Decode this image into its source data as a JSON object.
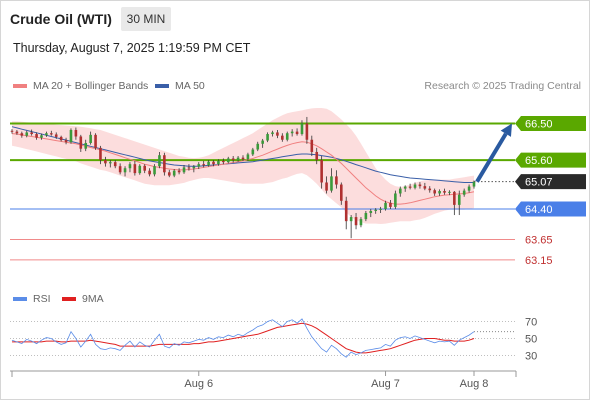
{
  "header": {
    "instrument": "Crude Oil (WTI)",
    "timeframe": "30 MIN",
    "datetime": "Thursday, August 7, 2025 1:19:59 PM CET",
    "credit": "Research © 2025 Trading Central"
  },
  "legend": {
    "ma20_label": "MA 20 + Bollinger Bands",
    "ma50_label": "MA 50",
    "rsi_label": "RSI",
    "rsi_ma_label": "9MA"
  },
  "colors": {
    "bull": "#3a9a3a",
    "bear": "#b03030",
    "ma20": "#f08080",
    "ma50": "#3a5fa8",
    "band_fill": "#fbd4d4",
    "resistance": "#5aa800",
    "pivot": "#4a7fe8",
    "support": "#f08a8a",
    "arrow": "#2a5aa0",
    "last_price_bg": "#2a2a2a",
    "rsi_line": "#5b8de8",
    "rsi_ma_line": "#e02020"
  },
  "chart_data": {
    "type": "candlestick",
    "x_ticks": [
      "Aug 6",
      "Aug 7",
      "Aug 8"
    ],
    "y_range": [
      62.9,
      67.15
    ],
    "levels": [
      {
        "value": 66.5,
        "label": "66.50",
        "kind": "resistance"
      },
      {
        "value": 65.6,
        "label": "65.60",
        "kind": "resistance"
      },
      {
        "value": 64.4,
        "label": "64.40",
        "kind": "pivot"
      },
      {
        "value": 63.65,
        "label": "63.65",
        "kind": "support"
      },
      {
        "value": 63.15,
        "label": "63.15",
        "kind": "support"
      }
    ],
    "last_price": {
      "value": 65.07,
      "label": "65.07"
    },
    "target_arrow": {
      "from": 65.07,
      "to": 66.5
    },
    "candles_ohlc": [
      [
        66.32,
        66.36,
        66.25,
        66.3
      ],
      [
        66.3,
        66.34,
        66.22,
        66.26
      ],
      [
        66.26,
        66.3,
        66.15,
        66.2
      ],
      [
        66.2,
        66.32,
        66.16,
        66.28
      ],
      [
        66.28,
        66.35,
        66.2,
        66.24
      ],
      [
        66.24,
        66.28,
        66.1,
        66.15
      ],
      [
        66.15,
        66.25,
        66.1,
        66.21
      ],
      [
        66.21,
        66.3,
        66.17,
        66.26
      ],
      [
        66.26,
        66.32,
        66.2,
        66.23
      ],
      [
        66.23,
        66.28,
        66.12,
        66.17
      ],
      [
        66.17,
        66.2,
        66.06,
        66.09
      ],
      [
        66.09,
        66.15,
        65.99,
        66.04
      ],
      [
        66.04,
        66.38,
        66.0,
        66.34
      ],
      [
        66.34,
        66.4,
        66.1,
        66.18
      ],
      [
        66.18,
        66.22,
        65.8,
        65.88
      ],
      [
        65.88,
        66.1,
        65.82,
        66.02
      ],
      [
        66.02,
        66.3,
        65.98,
        66.22
      ],
      [
        66.22,
        66.26,
        65.85,
        65.9
      ],
      [
        65.9,
        65.95,
        65.5,
        65.6
      ],
      [
        65.6,
        65.68,
        65.44,
        65.52
      ],
      [
        65.52,
        65.6,
        65.42,
        65.55
      ],
      [
        65.55,
        65.6,
        65.4,
        65.45
      ],
      [
        65.45,
        65.52,
        65.25,
        65.3
      ],
      [
        65.3,
        65.45,
        65.2,
        65.4
      ],
      [
        65.4,
        65.55,
        65.3,
        65.5
      ],
      [
        65.5,
        65.58,
        65.22,
        65.28
      ],
      [
        65.28,
        65.5,
        65.24,
        65.46
      ],
      [
        65.46,
        65.5,
        65.28,
        65.34
      ],
      [
        65.34,
        65.4,
        65.2,
        65.25
      ],
      [
        65.25,
        65.5,
        65.2,
        65.45
      ],
      [
        65.45,
        65.8,
        65.4,
        65.72
      ],
      [
        65.72,
        65.78,
        65.22,
        65.3
      ],
      [
        65.3,
        65.36,
        65.18,
        65.22
      ],
      [
        65.22,
        65.38,
        65.18,
        65.34
      ],
      [
        65.34,
        65.4,
        65.25,
        65.3
      ],
      [
        65.3,
        65.48,
        65.26,
        65.42
      ],
      [
        65.42,
        65.5,
        65.34,
        65.4
      ],
      [
        65.4,
        65.48,
        65.3,
        65.44
      ],
      [
        65.44,
        65.55,
        65.38,
        65.5
      ],
      [
        65.5,
        65.58,
        65.42,
        65.47
      ],
      [
        65.47,
        65.6,
        65.44,
        65.56
      ],
      [
        65.56,
        65.6,
        65.45,
        65.5
      ],
      [
        65.5,
        65.62,
        65.46,
        65.58
      ],
      [
        65.58,
        65.64,
        65.5,
        65.55
      ],
      [
        65.55,
        65.68,
        65.52,
        65.64
      ],
      [
        65.64,
        65.7,
        65.54,
        65.6
      ],
      [
        65.6,
        65.7,
        65.56,
        65.66
      ],
      [
        65.66,
        65.72,
        65.58,
        65.62
      ],
      [
        65.62,
        65.78,
        65.58,
        65.74
      ],
      [
        65.74,
        65.9,
        65.7,
        65.86
      ],
      [
        65.86,
        66.05,
        65.82,
        66.0
      ],
      [
        66.0,
        66.12,
        65.9,
        66.08
      ],
      [
        66.08,
        66.28,
        66.04,
        66.24
      ],
      [
        66.24,
        66.32,
        66.18,
        66.28
      ],
      [
        66.28,
        66.34,
        66.14,
        66.2
      ],
      [
        66.2,
        66.26,
        66.05,
        66.1
      ],
      [
        66.1,
        66.3,
        66.06,
        66.26
      ],
      [
        66.26,
        66.36,
        66.18,
        66.3
      ],
      [
        66.3,
        66.38,
        66.2,
        66.24
      ],
      [
        66.24,
        66.58,
        66.2,
        66.5
      ],
      [
        66.5,
        66.66,
        66.0,
        66.1
      ],
      [
        66.1,
        66.2,
        65.7,
        65.8
      ],
      [
        65.8,
        65.9,
        65.5,
        65.6
      ],
      [
        65.6,
        65.7,
        64.9,
        65.05
      ],
      [
        65.05,
        65.2,
        64.78,
        64.85
      ],
      [
        64.85,
        65.4,
        64.8,
        65.2
      ],
      [
        65.2,
        65.35,
        64.9,
        65.0
      ],
      [
        65.0,
        65.05,
        64.5,
        64.6
      ],
      [
        64.6,
        64.7,
        63.9,
        64.1
      ],
      [
        64.1,
        64.25,
        63.68,
        64.2
      ],
      [
        64.2,
        64.3,
        63.9,
        64.0
      ],
      [
        64.0,
        64.2,
        63.95,
        64.15
      ],
      [
        64.15,
        64.35,
        64.1,
        64.3
      ],
      [
        64.3,
        64.4,
        64.2,
        64.35
      ],
      [
        64.35,
        64.42,
        64.28,
        64.38
      ],
      [
        64.38,
        64.45,
        64.3,
        64.4
      ],
      [
        64.4,
        64.6,
        64.36,
        64.55
      ],
      [
        64.55,
        64.62,
        64.4,
        64.45
      ],
      [
        64.45,
        64.85,
        64.4,
        64.78
      ],
      [
        64.78,
        64.95,
        64.7,
        64.9
      ],
      [
        64.9,
        64.98,
        64.82,
        64.95
      ],
      [
        64.95,
        65.02,
        64.88,
        64.92
      ],
      [
        64.92,
        65.05,
        64.88,
        65.0
      ],
      [
        65.0,
        65.06,
        64.9,
        64.96
      ],
      [
        64.96,
        65.04,
        64.86,
        64.9
      ],
      [
        64.9,
        64.96,
        64.8,
        64.86
      ],
      [
        64.86,
        64.9,
        64.72,
        64.78
      ],
      [
        64.78,
        64.88,
        64.72,
        64.84
      ],
      [
        64.84,
        64.9,
        64.75,
        64.8
      ],
      [
        64.8,
        64.86,
        64.74,
        64.82
      ],
      [
        64.82,
        64.84,
        64.25,
        64.5
      ],
      [
        64.5,
        64.85,
        64.25,
        64.75
      ],
      [
        64.75,
        64.9,
        64.7,
        64.85
      ],
      [
        64.85,
        65.0,
        64.8,
        64.95
      ],
      [
        64.95,
        65.1,
        64.9,
        65.07
      ]
    ],
    "ma20": [
      66.25,
      66.24,
      66.22,
      66.2,
      66.18,
      66.16,
      66.14,
      66.12,
      66.1,
      66.08,
      66.06,
      66.04,
      66.02,
      66.0,
      65.97,
      65.94,
      65.91,
      65.88,
      65.85,
      65.82,
      65.78,
      65.74,
      65.7,
      65.66,
      65.62,
      65.58,
      65.54,
      65.5,
      65.47,
      65.44,
      65.42,
      65.4,
      65.38,
      65.37,
      65.36,
      65.36,
      65.37,
      65.38,
      65.4,
      65.42,
      65.44,
      65.46,
      65.48,
      65.5,
      65.52,
      65.54,
      65.56,
      65.58,
      65.61,
      65.64,
      65.68,
      65.72,
      65.77,
      65.82,
      65.87,
      65.92,
      65.96,
      66.0,
      66.03,
      66.05,
      66.04,
      66.0,
      65.95,
      65.88,
      65.8,
      65.72,
      65.62,
      65.52,
      65.4,
      65.28,
      65.16,
      65.04,
      64.92,
      64.82,
      64.72,
      64.64,
      64.58,
      64.54,
      64.52,
      64.52,
      64.53,
      64.55,
      64.58,
      64.61,
      64.64,
      64.67,
      64.7,
      64.72,
      64.74,
      64.75,
      64.76,
      64.77,
      64.78,
      64.8,
      64.82
    ],
    "ma50": [
      66.42,
      66.39,
      66.36,
      66.33,
      66.3,
      66.27,
      66.24,
      66.21,
      66.18,
      66.15,
      66.12,
      66.09,
      66.06,
      66.03,
      66.0,
      65.97,
      65.94,
      65.91,
      65.88,
      65.85,
      65.82,
      65.79,
      65.76,
      65.73,
      65.7,
      65.67,
      65.64,
      65.61,
      65.58,
      65.56,
      65.54,
      65.52,
      65.5,
      65.48,
      65.47,
      65.46,
      65.45,
      65.45,
      65.45,
      65.46,
      65.47,
      65.48,
      65.49,
      65.5,
      65.51,
      65.52,
      65.53,
      65.54,
      65.55,
      65.56,
      65.58,
      65.6,
      65.62,
      65.64,
      65.66,
      65.68,
      65.7,
      65.72,
      65.74,
      65.75,
      65.75,
      65.74,
      65.73,
      65.71,
      65.69,
      65.67,
      65.64,
      65.61,
      65.57,
      65.53,
      65.49,
      65.45,
      65.41,
      65.37,
      65.33,
      65.3,
      65.27,
      65.24,
      65.22,
      65.2,
      65.18,
      65.16,
      65.15,
      65.14,
      65.13,
      65.12,
      65.11,
      65.1,
      65.09,
      65.08,
      65.07,
      65.06,
      65.05,
      65.05,
      65.05
    ],
    "bb_upper": [
      66.55,
      66.55,
      66.54,
      66.53,
      66.52,
      66.51,
      66.5,
      66.49,
      66.48,
      66.47,
      66.46,
      66.45,
      66.44,
      66.43,
      66.42,
      66.4,
      66.38,
      66.36,
      66.34,
      66.3,
      66.26,
      66.22,
      66.18,
      66.14,
      66.1,
      66.06,
      66.02,
      65.98,
      65.94,
      65.9,
      65.86,
      65.82,
      65.78,
      65.74,
      65.7,
      65.68,
      65.66,
      65.65,
      65.66,
      65.68,
      65.72,
      65.78,
      65.84,
      65.9,
      65.96,
      66.02,
      66.08,
      66.14,
      66.2,
      66.26,
      66.34,
      66.42,
      66.5,
      66.58,
      66.64,
      66.7,
      66.75,
      66.78,
      66.8,
      66.82,
      66.85,
      66.87,
      66.88,
      66.88,
      66.86,
      66.8,
      66.7,
      66.6,
      66.48,
      66.36,
      66.2,
      66.0,
      65.8,
      65.6,
      65.4,
      65.25,
      65.12,
      65.02,
      64.96,
      64.94,
      64.96,
      65.0,
      65.04,
      65.08,
      65.1,
      65.11,
      65.12,
      65.12,
      65.12,
      65.12,
      65.14,
      65.16,
      65.18,
      65.2,
      65.22
    ],
    "bb_lower": [
      65.95,
      65.93,
      65.9,
      65.87,
      65.84,
      65.81,
      65.78,
      65.75,
      65.72,
      65.69,
      65.66,
      65.63,
      65.6,
      65.57,
      65.52,
      65.48,
      65.44,
      65.4,
      65.36,
      65.34,
      65.3,
      65.26,
      65.22,
      65.18,
      65.14,
      65.1,
      65.06,
      65.02,
      65.0,
      64.98,
      64.98,
      64.98,
      64.98,
      65.0,
      65.02,
      65.04,
      65.08,
      65.11,
      65.14,
      65.16,
      65.16,
      65.14,
      65.12,
      65.1,
      65.08,
      65.06,
      65.04,
      65.02,
      65.02,
      65.02,
      65.02,
      65.02,
      65.04,
      65.06,
      65.1,
      65.14,
      65.17,
      65.22,
      65.26,
      65.28,
      65.23,
      65.13,
      65.02,
      64.88,
      64.74,
      64.64,
      64.54,
      64.44,
      64.32,
      64.2,
      64.12,
      64.08,
      64.04,
      64.04,
      64.04,
      64.03,
      64.04,
      64.06,
      64.08,
      64.1,
      64.1,
      64.1,
      64.12,
      64.14,
      64.18,
      64.23,
      64.28,
      64.32,
      64.36,
      64.38,
      64.38,
      64.38,
      64.38,
      64.4,
      64.42
    ],
    "rsi": {
      "y_ticks": [
        "70",
        "50",
        "30"
      ],
      "y_range": [
        20,
        80
      ],
      "rsi": [
        48,
        46,
        44,
        49,
        47,
        44,
        48,
        51,
        50,
        46,
        43,
        45,
        58,
        50,
        40,
        47,
        55,
        43,
        38,
        37,
        39,
        38,
        36,
        42,
        47,
        40,
        46,
        42,
        40,
        48,
        55,
        41,
        39,
        44,
        42,
        46,
        45,
        47,
        49,
        48,
        51,
        49,
        52,
        51,
        54,
        52,
        55,
        53,
        57,
        60,
        64,
        66,
        70,
        72,
        68,
        64,
        70,
        72,
        68,
        73,
        62,
        52,
        45,
        38,
        34,
        42,
        38,
        32,
        28,
        34,
        31,
        33,
        36,
        37,
        38,
        39,
        43,
        41,
        48,
        51,
        52,
        50,
        53,
        51,
        49,
        47,
        45,
        47,
        46,
        47,
        42,
        48,
        51,
        54,
        58
      ],
      "rsi_ma": [
        46,
        46,
        46,
        46,
        46,
        46,
        46,
        47,
        47,
        47,
        46,
        46,
        47,
        47,
        47,
        47,
        48,
        47,
        46,
        45,
        44,
        43,
        41,
        41,
        41,
        41,
        41,
        41,
        41,
        42,
        43,
        43,
        43,
        43,
        43,
        43,
        43,
        44,
        44,
        45,
        46,
        46,
        47,
        48,
        49,
        50,
        51,
        52,
        53,
        54,
        55,
        57,
        59,
        61,
        63,
        64,
        65,
        66,
        67,
        68,
        67,
        65,
        62,
        58,
        54,
        50,
        46,
        42,
        38,
        36,
        34,
        33,
        33,
        34,
        35,
        36,
        37,
        38,
        40,
        42,
        44,
        46,
        48,
        49,
        50,
        50,
        50,
        49,
        48,
        48,
        47,
        47,
        47,
        48,
        50
      ]
    }
  }
}
